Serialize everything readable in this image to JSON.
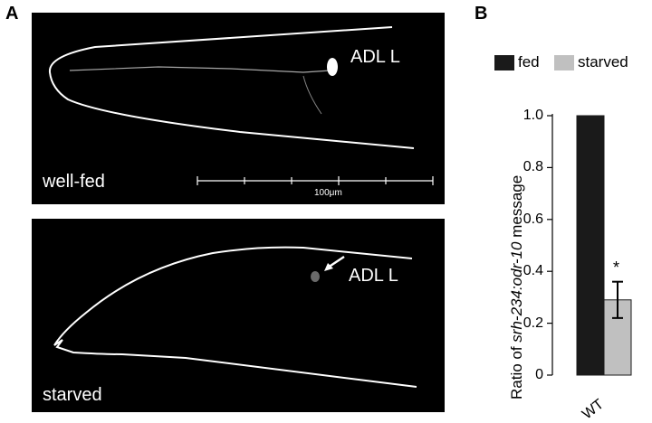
{
  "panel_a": {
    "letter": "A",
    "top_image": {
      "neuron_label": "ADL L",
      "condition_label": "well-fed",
      "scale_bar_label": "100μm"
    },
    "bottom_image": {
      "neuron_label": "ADL L",
      "condition_label": "starved"
    }
  },
  "panel_b": {
    "letter": "B"
  },
  "chart_data": {
    "type": "bar",
    "categories": [
      "WT"
    ],
    "series": [
      {
        "name": "fed",
        "values": [
          1.0
        ],
        "color": "#1a1a1a"
      },
      {
        "name": "starved",
        "values": [
          0.29
        ],
        "error": [
          0.07
        ],
        "color": "#c0c0c0"
      }
    ],
    "ylabel_prefix": "Ratio of ",
    "ylabel_italic": "srh-234:odr-10",
    "ylabel_suffix": " message",
    "ylim": [
      0,
      1.0
    ],
    "yticks": [
      "0",
      "0.2",
      "0.4",
      "0.6",
      "0.8",
      "1.0"
    ],
    "annotation": "*",
    "legend_position": "top"
  }
}
